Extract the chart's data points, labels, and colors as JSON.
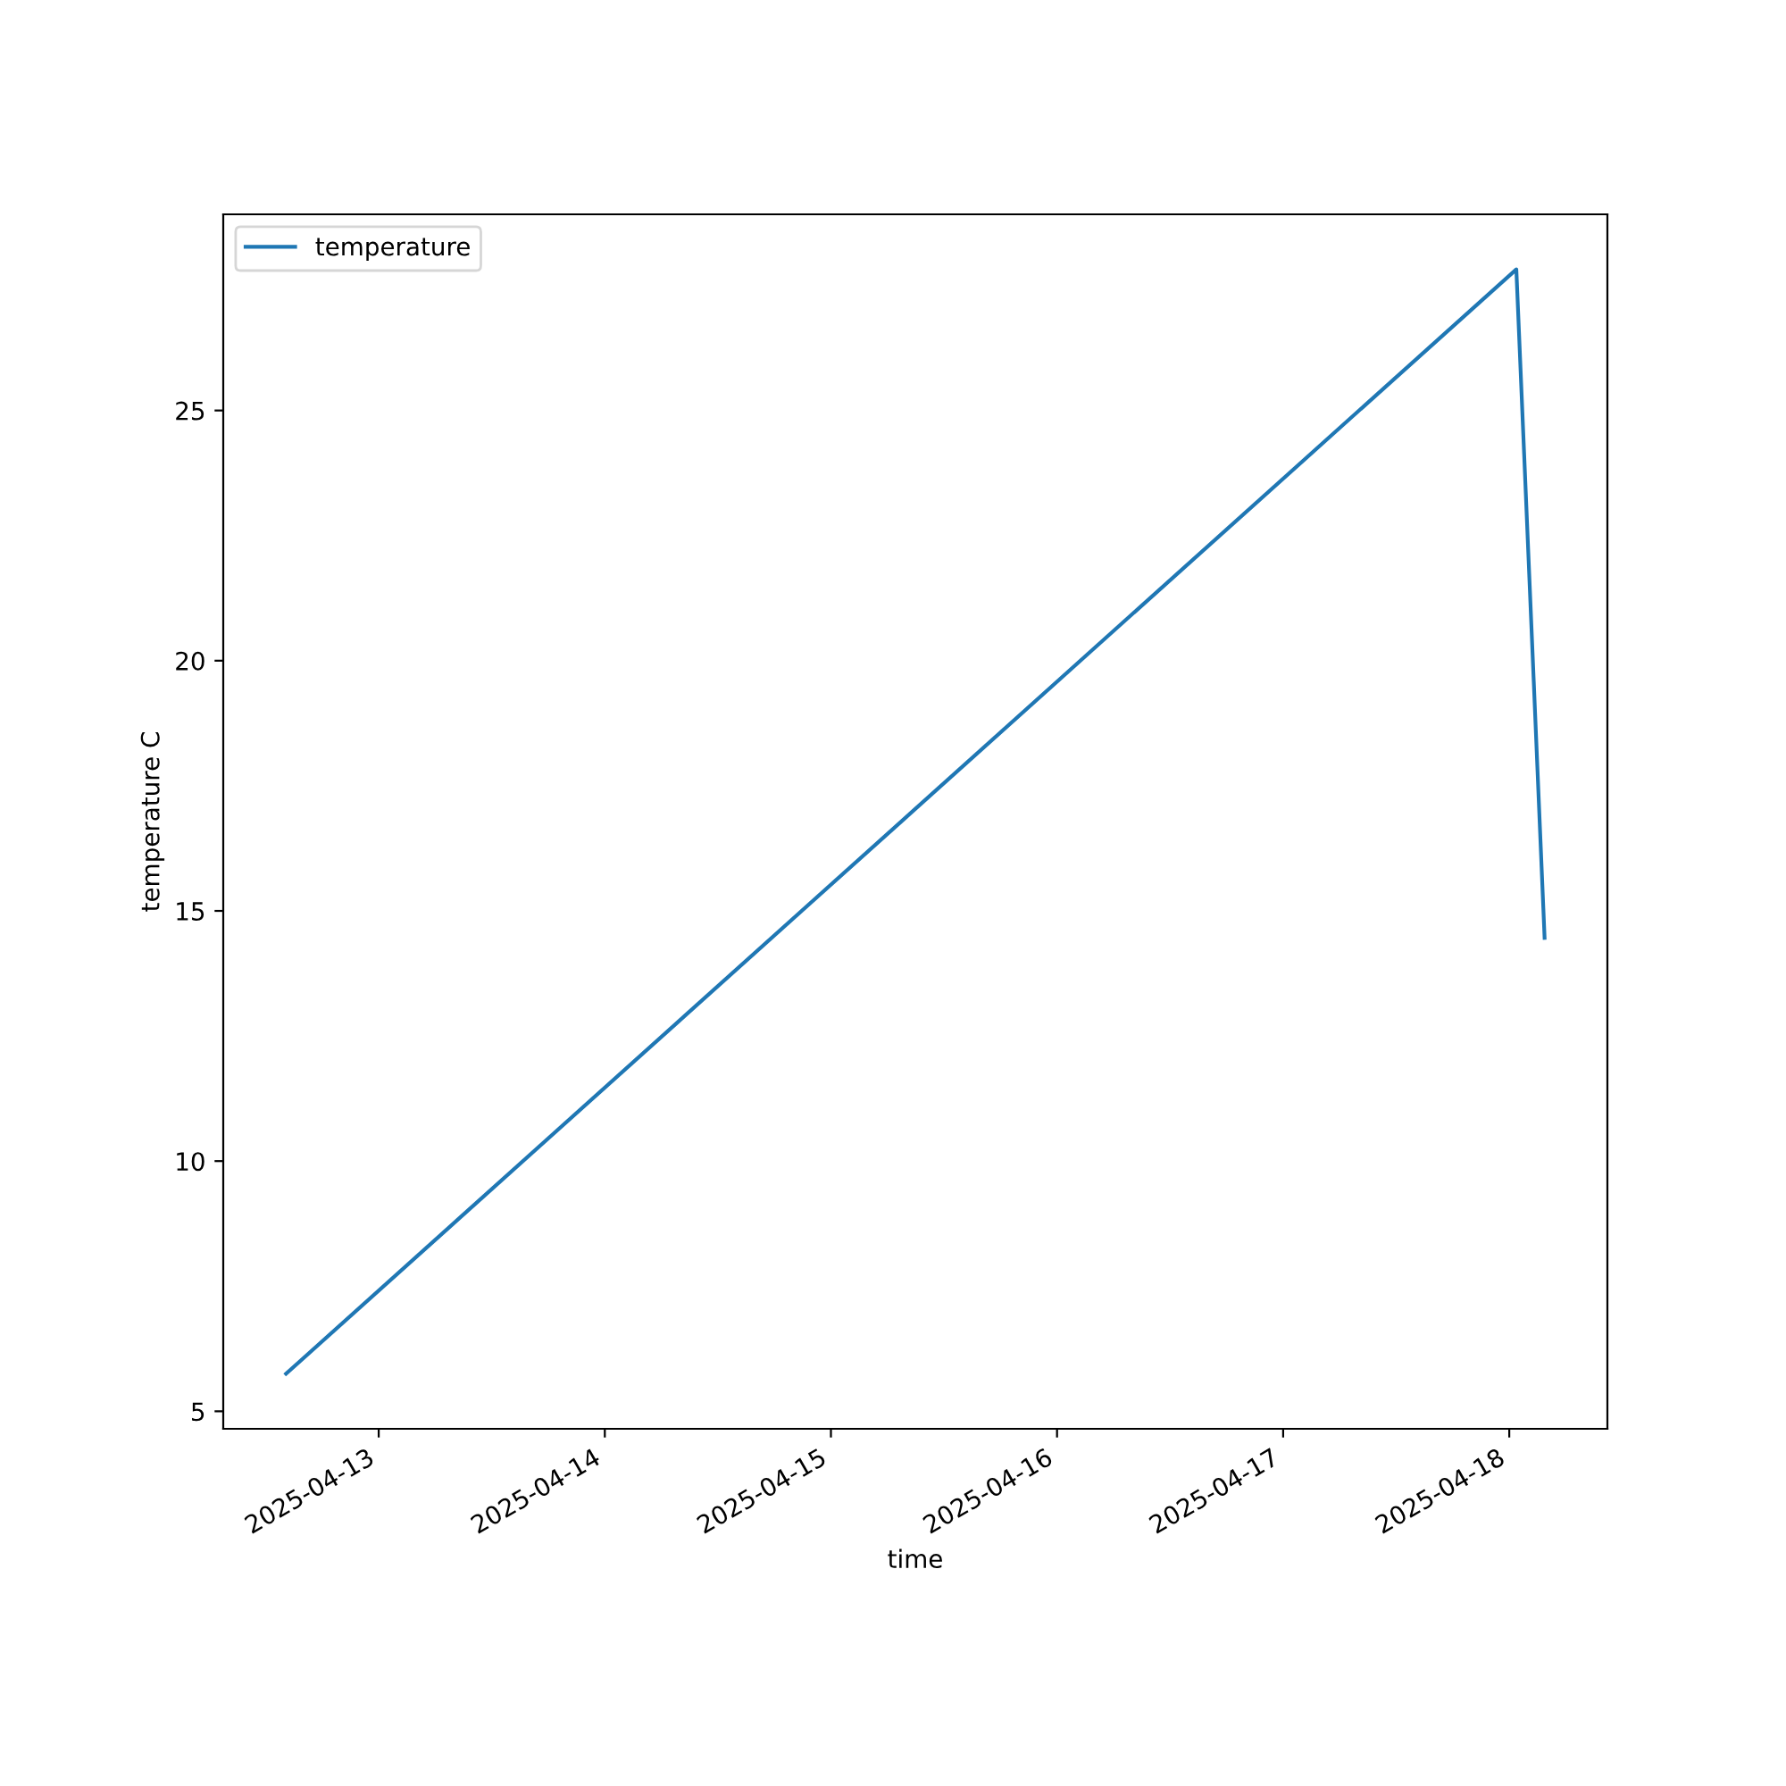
{
  "chart_data": {
    "type": "line",
    "xlabel": "time",
    "ylabel": "temperature C",
    "x": [
      "2025-04-12T14:10",
      "2025-04-18T00:45",
      "2025-04-18T03:45"
    ],
    "series": [
      {
        "name": "temperature",
        "color": "#1f77b4",
        "values": [
          5.75,
          27.82,
          14.46
        ]
      }
    ],
    "xlim": [
      "2025-04-12T07:30",
      "2025-04-18T10:25"
    ],
    "xticks": [
      "2025-04-13",
      "2025-04-14",
      "2025-04-15",
      "2025-04-16",
      "2025-04-17",
      "2025-04-18"
    ],
    "ylim": [
      4.65,
      28.92
    ],
    "yticks": [
      5,
      10,
      15,
      20,
      25
    ],
    "legend": "top left",
    "grid": false,
    "marker": "none",
    "line_style": "solid"
  }
}
